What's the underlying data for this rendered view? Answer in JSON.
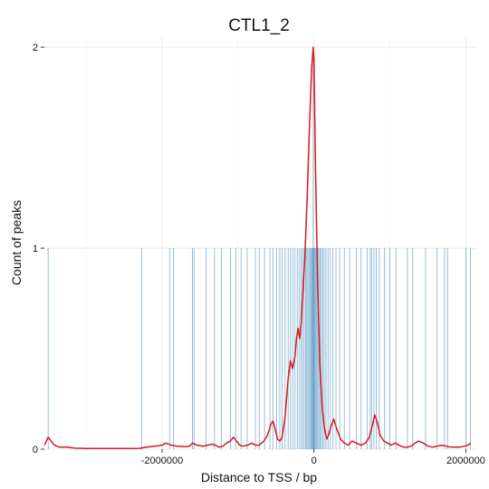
{
  "chart_data": {
    "type": "bar",
    "title": "CTL1_2",
    "xlabel": "Distance to TSS / bp",
    "ylabel": "Count of peaks",
    "xlim": [
      -3550000,
      2150000
    ],
    "ylim": [
      0,
      2.05
    ],
    "x_ticks": [
      {
        "value": -2000000,
        "label": "-2000000"
      },
      {
        "value": 0,
        "label": "0"
      },
      {
        "value": 2000000,
        "label": "2000000"
      }
    ],
    "y_ticks": [
      {
        "value": 0,
        "label": "0"
      },
      {
        "value": 1,
        "label": "1"
      },
      {
        "value": 2,
        "label": "2"
      }
    ],
    "grid": true,
    "series": [
      {
        "kind": "bars",
        "color": "#2c7bb6",
        "points": [
          {
            "x": -3500000,
            "y": 1
          },
          {
            "x": -2270000,
            "y": 1
          },
          {
            "x": -1900000,
            "y": 1
          },
          {
            "x": -1850000,
            "y": 1
          },
          {
            "x": -1600000,
            "y": 1
          },
          {
            "x": -1580000,
            "y": 1
          },
          {
            "x": -1420000,
            "y": 1
          },
          {
            "x": -1310000,
            "y": 1
          },
          {
            "x": -1220000,
            "y": 1
          },
          {
            "x": -1100000,
            "y": 1
          },
          {
            "x": -1030000,
            "y": 1
          },
          {
            "x": -960000,
            "y": 1
          },
          {
            "x": -880000,
            "y": 1
          },
          {
            "x": -770000,
            "y": 1
          },
          {
            "x": -720000,
            "y": 1
          },
          {
            "x": -650000,
            "y": 1
          },
          {
            "x": -580000,
            "y": 1
          },
          {
            "x": -540000,
            "y": 1
          },
          {
            "x": -490000,
            "y": 1
          },
          {
            "x": -450000,
            "y": 1
          },
          {
            "x": -420000,
            "y": 1
          },
          {
            "x": -380000,
            "y": 1
          },
          {
            "x": -340000,
            "y": 1
          },
          {
            "x": -310000,
            "y": 1
          },
          {
            "x": -280000,
            "y": 1
          },
          {
            "x": -250000,
            "y": 1
          },
          {
            "x": -220000,
            "y": 1
          },
          {
            "x": -195000,
            "y": 1
          },
          {
            "x": -170000,
            "y": 1
          },
          {
            "x": -150000,
            "y": 1
          },
          {
            "x": -130000,
            "y": 1
          },
          {
            "x": -110000,
            "y": 1
          },
          {
            "x": -95000,
            "y": 1
          },
          {
            "x": -80000,
            "y": 1
          },
          {
            "x": -65000,
            "y": 1
          },
          {
            "x": -50000,
            "y": 1
          },
          {
            "x": -38000,
            "y": 1
          },
          {
            "x": -26000,
            "y": 1
          },
          {
            "x": -15000,
            "y": 1
          },
          {
            "x": -6000,
            "y": 1
          },
          {
            "x": 4000,
            "y": 1
          },
          {
            "x": 14000,
            "y": 1
          },
          {
            "x": 25000,
            "y": 1
          },
          {
            "x": 37000,
            "y": 1
          },
          {
            "x": 50000,
            "y": 1
          },
          {
            "x": 64000,
            "y": 1
          },
          {
            "x": 80000,
            "y": 1
          },
          {
            "x": 97000,
            "y": 1
          },
          {
            "x": 115000,
            "y": 1
          },
          {
            "x": 135000,
            "y": 1
          },
          {
            "x": 158000,
            "y": 1
          },
          {
            "x": 185000,
            "y": 1
          },
          {
            "x": 215000,
            "y": 1
          },
          {
            "x": 250000,
            "y": 1
          },
          {
            "x": 290000,
            "y": 1
          },
          {
            "x": 340000,
            "y": 1
          },
          {
            "x": 400000,
            "y": 1
          },
          {
            "x": 470000,
            "y": 1
          },
          {
            "x": 560000,
            "y": 1
          },
          {
            "x": 620000,
            "y": 1
          },
          {
            "x": 700000,
            "y": 1
          },
          {
            "x": 740000,
            "y": 1
          },
          {
            "x": 760000,
            "y": 1
          },
          {
            "x": 790000,
            "y": 1
          },
          {
            "x": 820000,
            "y": 1
          },
          {
            "x": 860000,
            "y": 1
          },
          {
            "x": 930000,
            "y": 1
          },
          {
            "x": 1000000,
            "y": 1
          },
          {
            "x": 1080000,
            "y": 1
          },
          {
            "x": 1230000,
            "y": 1
          },
          {
            "x": 1300000,
            "y": 1
          },
          {
            "x": 1470000,
            "y": 1
          },
          {
            "x": 1620000,
            "y": 1
          },
          {
            "x": 1720000,
            "y": 1
          },
          {
            "x": 1760000,
            "y": 1
          },
          {
            "x": 2000000,
            "y": 1
          },
          {
            "x": 2060000,
            "y": 1
          },
          {
            "x": -10000,
            "y": 2
          }
        ]
      },
      {
        "kind": "line",
        "color": "#d7191c",
        "x": [
          -3550000,
          -3500000,
          -3420000,
          -3350000,
          -3250000,
          -3150000,
          -3000000,
          -2800000,
          -2600000,
          -2400000,
          -2300000,
          -2200000,
          -2100000,
          -2000000,
          -1950000,
          -1880000,
          -1800000,
          -1700000,
          -1640000,
          -1600000,
          -1540000,
          -1460000,
          -1400000,
          -1340000,
          -1300000,
          -1250000,
          -1200000,
          -1150000,
          -1100000,
          -1060000,
          -1020000,
          -980000,
          -930000,
          -870000,
          -820000,
          -770000,
          -720000,
          -660000,
          -610000,
          -570000,
          -540000,
          -510000,
          -480000,
          -450000,
          -420000,
          -380000,
          -340000,
          -310000,
          -280000,
          -250000,
          -230000,
          -210000,
          -190000,
          -170000,
          -150000,
          -120000,
          -90000,
          -60000,
          -30000,
          -10000,
          0,
          20000,
          50000,
          80000,
          110000,
          140000,
          170000,
          200000,
          230000,
          260000,
          300000,
          350000,
          400000,
          450000,
          500000,
          560000,
          620000,
          680000,
          730000,
          770000,
          800000,
          830000,
          870000,
          920000,
          970000,
          1020000,
          1070000,
          1120000,
          1180000,
          1230000,
          1280000,
          1330000,
          1380000,
          1440000,
          1500000,
          1560000,
          1620000,
          1680000,
          1740000,
          1800000,
          1860000,
          1920000,
          1980000,
          2030000,
          2060000
        ],
        "y": [
          0.02,
          0.06,
          0.02,
          0.01,
          0.01,
          0.005,
          0.003,
          0.003,
          0.003,
          0.003,
          0.004,
          0.01,
          0.015,
          0.02,
          0.03,
          0.02,
          0.015,
          0.012,
          0.015,
          0.03,
          0.02,
          0.015,
          0.02,
          0.025,
          0.02,
          0.01,
          0.015,
          0.03,
          0.04,
          0.06,
          0.04,
          0.02,
          0.015,
          0.02,
          0.03,
          0.02,
          0.02,
          0.04,
          0.07,
          0.12,
          0.14,
          0.1,
          0.05,
          0.04,
          0.06,
          0.16,
          0.35,
          0.44,
          0.4,
          0.46,
          0.55,
          0.6,
          0.55,
          0.62,
          0.75,
          0.95,
          1.25,
          1.6,
          1.9,
          2.0,
          1.95,
          1.4,
          0.8,
          0.4,
          0.2,
          0.1,
          0.05,
          0.08,
          0.12,
          0.15,
          0.1,
          0.05,
          0.03,
          0.02,
          0.04,
          0.03,
          0.02,
          0.03,
          0.06,
          0.12,
          0.17,
          0.14,
          0.07,
          0.04,
          0.03,
          0.02,
          0.03,
          0.02,
          0.01,
          0.01,
          0.015,
          0.03,
          0.04,
          0.03,
          0.015,
          0.01,
          0.015,
          0.02,
          0.015,
          0.01,
          0.01,
          0.01,
          0.015,
          0.02,
          0.03
        ]
      }
    ]
  }
}
